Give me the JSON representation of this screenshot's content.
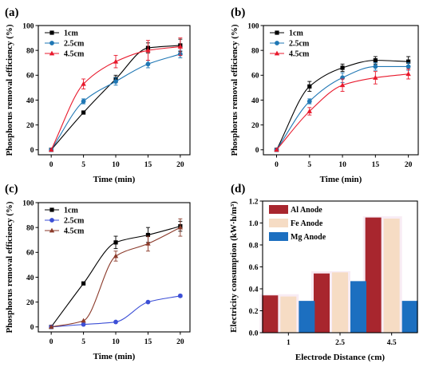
{
  "chart_data": [
    {
      "panel": "(a)",
      "type": "line",
      "x": [
        0,
        5,
        10,
        15,
        20
      ],
      "xlabel": "Time (min)",
      "ylabel": "Phosphorus removal efficiency (%)",
      "xlim": [
        -2,
        21.5
      ],
      "ylim": [
        -4,
        100
      ],
      "xticks": [
        0,
        5,
        10,
        15,
        20
      ],
      "yticks": [
        0,
        20,
        40,
        60,
        80,
        100
      ],
      "legend_position": "top-left",
      "series": [
        {
          "name": "1cm",
          "color": "#000000",
          "marker": "square",
          "values": [
            0,
            30,
            57,
            82,
            84
          ],
          "errors": [
            0,
            0,
            3,
            4,
            5
          ]
        },
        {
          "name": "2.5cm",
          "color": "#1f77b4",
          "marker": "circle",
          "values": [
            0,
            39,
            55,
            69,
            77
          ],
          "errors": [
            0,
            2,
            3,
            3,
            3
          ]
        },
        {
          "name": "4.5cm",
          "color": "#e8192c",
          "marker": "triangle",
          "values": [
            0,
            53,
            71,
            80,
            83
          ],
          "errors": [
            0,
            4,
            5,
            8,
            7
          ]
        }
      ]
    },
    {
      "panel": "(b)",
      "type": "line",
      "x": [
        0,
        5,
        10,
        15,
        20
      ],
      "xlabel": "Time (min)",
      "ylabel": "Phosphorus removal efficiency (%)",
      "xlim": [
        -2,
        21.5
      ],
      "ylim": [
        -4,
        100
      ],
      "xticks": [
        0,
        5,
        10,
        15,
        20
      ],
      "yticks": [
        0,
        20,
        40,
        60,
        80,
        100
      ],
      "legend_position": "top-left",
      "series": [
        {
          "name": "1cm",
          "color": "#000000",
          "marker": "square",
          "values": [
            0,
            51,
            66,
            72,
            71
          ],
          "errors": [
            0,
            4,
            3,
            3,
            4
          ]
        },
        {
          "name": "2.5cm",
          "color": "#1f77b4",
          "marker": "circle",
          "values": [
            0,
            39,
            58,
            67,
            67
          ],
          "errors": [
            0,
            2,
            4,
            3,
            3
          ]
        },
        {
          "name": "4.5cm",
          "color": "#e8192c",
          "marker": "triangle",
          "values": [
            0,
            31,
            52,
            58,
            61
          ],
          "errors": [
            0,
            3,
            5,
            5,
            4
          ]
        }
      ]
    },
    {
      "panel": "(c)",
      "type": "line",
      "x": [
        0,
        5,
        10,
        15,
        20
      ],
      "xlabel": "Time (min)",
      "ylabel": "Phosphorus removal efficiency (%)",
      "xlim": [
        -2,
        21.5
      ],
      "ylim": [
        -4,
        100
      ],
      "xticks": [
        0,
        5,
        10,
        15,
        20
      ],
      "yticks": [
        0,
        20,
        40,
        60,
        80,
        100
      ],
      "legend_position": "top-left",
      "series": [
        {
          "name": "1cm",
          "color": "#000000",
          "marker": "square",
          "values": [
            0,
            35,
            68,
            74,
            81
          ],
          "errors": [
            0,
            0,
            5,
            6,
            4
          ]
        },
        {
          "name": "2.5cm",
          "color": "#3c4fd6",
          "marker": "circle",
          "values": [
            0,
            2,
            4,
            20,
            25
          ],
          "errors": [
            0,
            0,
            0,
            0,
            1
          ]
        },
        {
          "name": "4.5cm",
          "color": "#8b3a2a",
          "marker": "triangle",
          "values": [
            0,
            5,
            57,
            67,
            80
          ],
          "errors": [
            0,
            0,
            4,
            6,
            7
          ]
        }
      ]
    },
    {
      "panel": "(d)",
      "type": "bar",
      "categories": [
        "1",
        "2.5",
        "4.5"
      ],
      "xlabel": "Electrode Distance (cm)",
      "ylabel": "Electricity consumption (kW·h/m³)",
      "ylim": [
        0,
        1.2
      ],
      "yticks": [
        0.0,
        0.2,
        0.4,
        0.6,
        0.8,
        1.0,
        1.2
      ],
      "legend_position": "top-left",
      "series": [
        {
          "name": "Al Anode",
          "color": "#a8262e",
          "values": [
            0.34,
            0.54,
            1.05
          ]
        },
        {
          "name": "Fe Anode",
          "color": "#f6dcc4",
          "values": [
            0.33,
            0.55,
            1.04
          ]
        },
        {
          "name": "Mg Anode",
          "color": "#1c6fc0",
          "values": [
            0.29,
            0.47,
            0.29
          ]
        }
      ]
    }
  ]
}
